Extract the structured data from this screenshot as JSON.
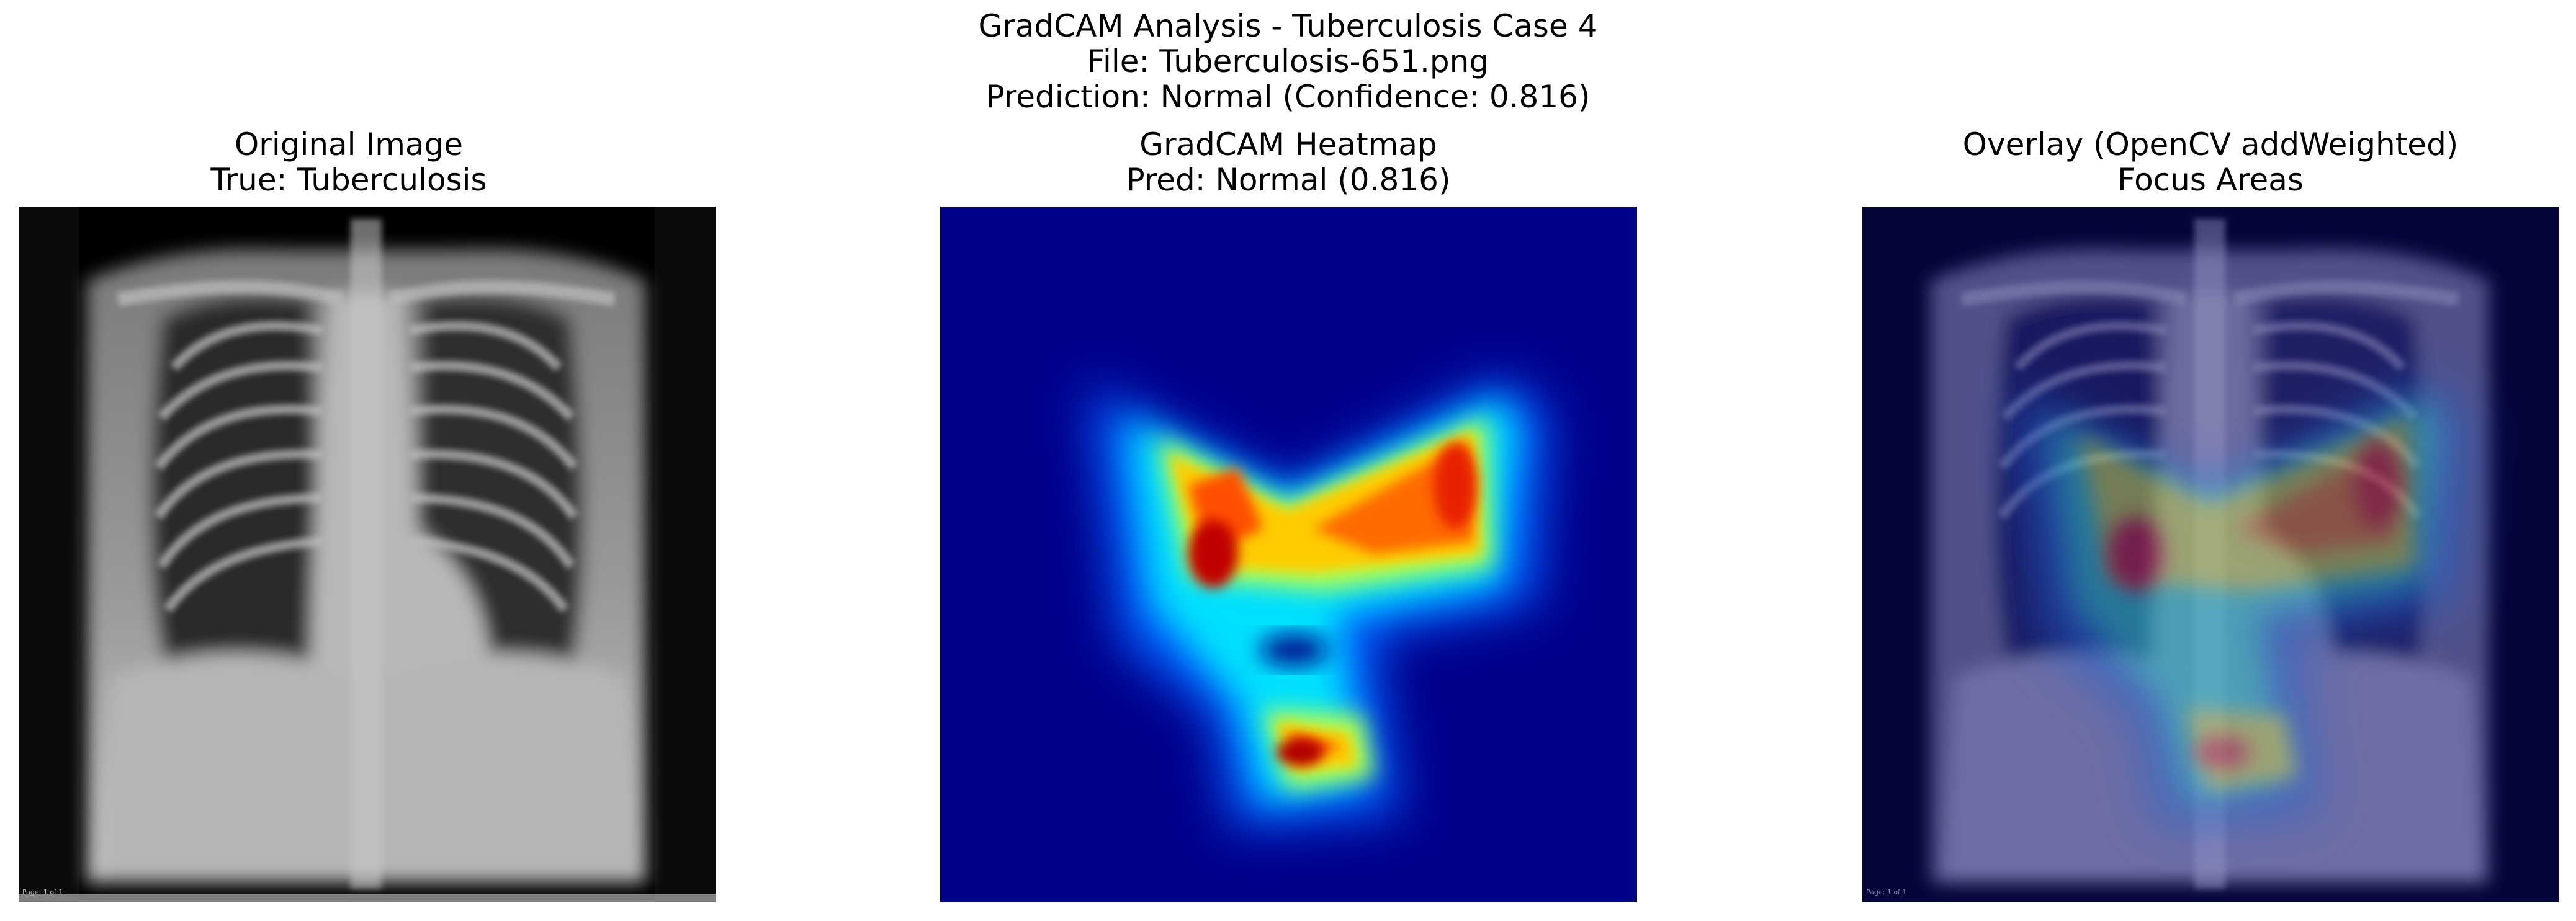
{
  "figure": {
    "title_line1": "GradCAM Analysis - Tuberculosis Case 4",
    "title_line2": "File: Tuberculosis-651.png",
    "title_line3": "Prediction: Normal (Confidence: 0.816)"
  },
  "panels": [
    {
      "title_line1": "Original Image",
      "title_line2": "True: Tuberculosis",
      "image_label": "Page: 1 of 1"
    },
    {
      "title_line1": "GradCAM Heatmap",
      "title_line2": "Pred: Normal (0.816)",
      "colormap": "jet"
    },
    {
      "title_line1": "Overlay (OpenCV addWeighted)",
      "title_line2": "Focus Areas",
      "image_label": "Page: 1 of 1"
    }
  ]
}
